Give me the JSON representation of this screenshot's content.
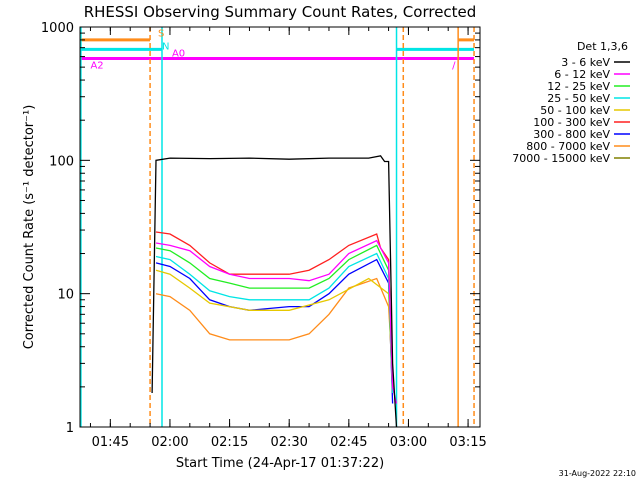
{
  "chart_data": {
    "type": "line",
    "title": "RHESSI Observing Summary Count Rates, Corrected",
    "xlabel": "Start Time (24-Apr-17 01:37:22)",
    "ylabel": "Corrected Count Rate (s⁻¹ detector⁻¹)",
    "yscale": "log",
    "ylim": [
      1,
      1000
    ],
    "xlim_minutes": [
      97.37,
      198.0
    ],
    "x_ticks": [
      "01:45",
      "02:00",
      "02:15",
      "02:30",
      "02:45",
      "03:00",
      "03:15"
    ],
    "y_ticks": [
      "1",
      "10",
      "100",
      "1000"
    ],
    "legend_title": "Det 1,3,6",
    "legend_placement": "right",
    "series": [
      {
        "name": "3 - 6 keV",
        "color": "#000000",
        "points": [
          [
            115.5,
            1.8
          ],
          [
            116.5,
            100
          ],
          [
            120,
            104
          ],
          [
            130,
            103
          ],
          [
            140,
            104
          ],
          [
            150,
            102
          ],
          [
            160,
            104
          ],
          [
            170,
            104
          ],
          [
            173,
            108
          ],
          [
            174,
            98
          ],
          [
            175,
            98
          ],
          [
            176,
            3
          ],
          [
            177,
            1
          ]
        ]
      },
      {
        "name": "6 - 12 keV",
        "color": "#ff00ff",
        "points": [
          [
            116.5,
            24
          ],
          [
            120,
            23
          ],
          [
            125,
            21
          ],
          [
            130,
            16
          ],
          [
            135,
            14
          ],
          [
            140,
            13
          ],
          [
            150,
            13
          ],
          [
            155,
            12.5
          ],
          [
            160,
            14
          ],
          [
            165,
            20
          ],
          [
            172,
            25
          ],
          [
            175,
            17
          ],
          [
            176,
            2
          ],
          [
            177,
            1.5
          ]
        ]
      },
      {
        "name": "12 - 25 keV",
        "color": "#22ee22",
        "points": [
          [
            116.5,
            22
          ],
          [
            120,
            21
          ],
          [
            125,
            17
          ],
          [
            130,
            13
          ],
          [
            135,
            12
          ],
          [
            140,
            11
          ],
          [
            150,
            11
          ],
          [
            155,
            11
          ],
          [
            160,
            13
          ],
          [
            165,
            18
          ],
          [
            172,
            23
          ],
          [
            175,
            15
          ],
          [
            176,
            2
          ]
        ]
      },
      {
        "name": "25 - 50 keV",
        "color": "#00e5e5",
        "points": [
          [
            116.5,
            19
          ],
          [
            120,
            18
          ],
          [
            125,
            14
          ],
          [
            130,
            10.5
          ],
          [
            135,
            9.5
          ],
          [
            140,
            9
          ],
          [
            150,
            9
          ],
          [
            155,
            9
          ],
          [
            160,
            11
          ],
          [
            165,
            16
          ],
          [
            172,
            20
          ],
          [
            175,
            13
          ],
          [
            176,
            1.8
          ]
        ]
      },
      {
        "name": "50 - 100 keV",
        "color": "#e6c800",
        "points": [
          [
            116.5,
            15
          ],
          [
            120,
            14
          ],
          [
            125,
            11
          ],
          [
            130,
            8.5
          ],
          [
            140,
            7.5
          ],
          [
            150,
            7.5
          ],
          [
            160,
            9
          ],
          [
            170,
            13
          ],
          [
            175,
            10
          ],
          [
            176,
            1.8
          ]
        ]
      },
      {
        "name": "100 - 300 keV",
        "color": "#ff2020",
        "points": [
          [
            116.5,
            29
          ],
          [
            120,
            28
          ],
          [
            125,
            23
          ],
          [
            130,
            17
          ],
          [
            135,
            14
          ],
          [
            140,
            14
          ],
          [
            150,
            14
          ],
          [
            155,
            15
          ],
          [
            160,
            18
          ],
          [
            165,
            23
          ],
          [
            172,
            28
          ],
          [
            173,
            22
          ],
          [
            175,
            18
          ],
          [
            176,
            2
          ]
        ]
      },
      {
        "name": "300 - 800 keV",
        "color": "#0000ff",
        "points": [
          [
            116.5,
            17
          ],
          [
            120,
            16
          ],
          [
            125,
            13
          ],
          [
            130,
            9
          ],
          [
            135,
            8
          ],
          [
            140,
            7.5
          ],
          [
            150,
            8
          ],
          [
            155,
            8
          ],
          [
            160,
            10
          ],
          [
            165,
            14
          ],
          [
            172,
            18
          ],
          [
            175,
            12
          ],
          [
            176,
            1.5
          ]
        ]
      },
      {
        "name": "800 - 7000 keV",
        "color": "#ff8c1a",
        "points": [
          [
            116.5,
            10
          ],
          [
            120,
            9.5
          ],
          [
            125,
            7.5
          ],
          [
            130,
            5
          ],
          [
            135,
            4.5
          ],
          [
            140,
            4.5
          ],
          [
            150,
            4.5
          ],
          [
            155,
            5
          ],
          [
            160,
            7
          ],
          [
            165,
            11
          ],
          [
            172,
            13
          ],
          [
            175,
            8
          ],
          [
            176,
            2.5
          ]
        ]
      },
      {
        "name": "7000 - 15000 keV",
        "color": "#808000",
        "points": []
      }
    ],
    "annotations": [
      {
        "text": "S",
        "color": "#ff8c1a",
        "minute": 117.0,
        "level": 850
      },
      {
        "text": "N",
        "color": "#00e5e5",
        "minute": 118.0,
        "level": 680
      },
      {
        "text": "A0",
        "color": "#ff00ff",
        "minute": 120.5,
        "level": 600
      },
      {
        "text": "A2",
        "color": "#ff00ff",
        "minute": 100.0,
        "level": 490
      },
      {
        "text": "/",
        "color": "#ff00ff",
        "minute": 191.0,
        "level": 490
      }
    ],
    "flag_bars": [
      {
        "name": "saa",
        "color": "#ff8c1a",
        "level": 800,
        "segments": [
          [
            97.37,
            115.0
          ],
          [
            192.5,
            196.5
          ]
        ]
      },
      {
        "name": "night",
        "color": "#00e5e5",
        "level": 680,
        "segments": [
          [
            97.37,
            118.0
          ],
          [
            177.0,
            196.5
          ]
        ]
      },
      {
        "name": "attenuator",
        "color": "#ff00ff",
        "level": 580,
        "segments": [
          [
            97.37,
            196.5
          ]
        ]
      }
    ],
    "vertical_lines": [
      {
        "minute": 97.6,
        "color": "#00e5e5",
        "style": "solid"
      },
      {
        "minute": 115.0,
        "color": "#ff8c1a",
        "style": "dashed"
      },
      {
        "minute": 118.0,
        "color": "#00e5e5",
        "style": "solid"
      },
      {
        "minute": 177.0,
        "color": "#00e5e5",
        "style": "solid"
      },
      {
        "minute": 178.7,
        "color": "#ff8c1a",
        "style": "dashed"
      },
      {
        "minute": 192.5,
        "color": "#ff8c1a",
        "style": "solid"
      },
      {
        "minute": 196.5,
        "color": "#ff8c1a",
        "style": "dashed"
      }
    ]
  },
  "footer": {
    "date": "31-Aug-2022 22:10"
  }
}
